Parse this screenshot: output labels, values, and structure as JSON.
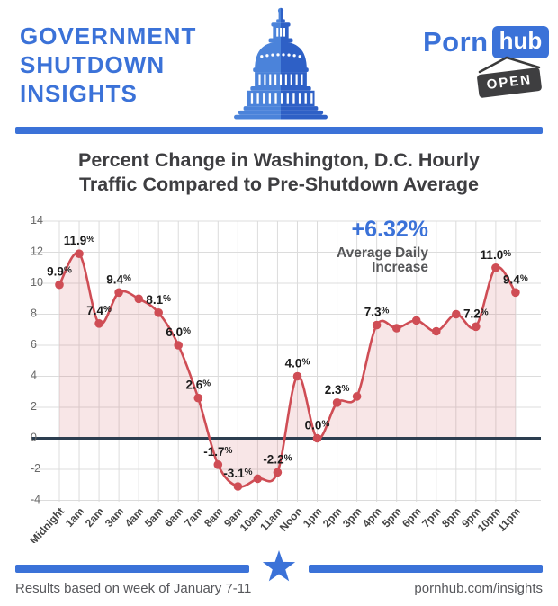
{
  "header": {
    "title_lines": [
      "GOVERNMENT",
      "SHUTDOWN",
      "INSIGHTS"
    ],
    "brand": {
      "porn": "Porn",
      "hub": "hub",
      "open_sign": "OPEN"
    },
    "accent_blue": "#3b72d8"
  },
  "chart": {
    "title_line1": "Percent Change in Washington, D.C. Hourly",
    "title_line2": "Traffic Compared to Pre-Shutdown Average"
  },
  "chart_data": {
    "type": "area",
    "title": "Percent Change in Washington, D.C. Hourly Traffic Compared to Pre-Shutdown Average",
    "x": [
      "Midnight",
      "1am",
      "2am",
      "3am",
      "4am",
      "5am",
      "6am",
      "7am",
      "8am",
      "9am",
      "10am",
      "11am",
      "Noon",
      "1pm",
      "2pm",
      "3pm",
      "4pm",
      "5pm",
      "6pm",
      "7pm",
      "8pm",
      "9pm",
      "10pm",
      "11pm"
    ],
    "series": [
      {
        "name": "Percent change vs pre-shutdown average",
        "values": [
          9.9,
          11.9,
          7.4,
          9.4,
          9.0,
          8.1,
          6.0,
          2.6,
          -1.7,
          -3.1,
          -2.6,
          -2.2,
          4.0,
          0.0,
          2.3,
          2.7,
          7.3,
          7.1,
          7.6,
          6.9,
          8.0,
          7.2,
          11.0,
          9.4
        ]
      }
    ],
    "point_labels": [
      "9.9%",
      "11.9%",
      "7.4%",
      "9.4%",
      null,
      "8.1%",
      "6.0%",
      "2.6%",
      "-1.7%",
      "-3.1%",
      null,
      "-2.2%",
      "4.0%",
      "0.0%",
      "2.3%",
      null,
      "7.3%",
      null,
      null,
      null,
      null,
      "7.2%",
      "11.0%",
      "9.4%"
    ],
    "yticks": [
      14,
      12,
      10,
      8,
      6,
      4,
      2,
      0,
      -2,
      -4
    ],
    "ylim": [
      -5.3,
      14.6
    ],
    "grid": true,
    "legend": "none",
    "annotation": {
      "headline": "+6.32%",
      "sub_lines": [
        "Average Daily",
        "Increase"
      ]
    },
    "colors": {
      "line": "#cf4d55",
      "fill": "rgba(207,77,85,0.14)",
      "zero_line": "#2c3e50",
      "grid": "#dcdcdc",
      "tick_text": "#6a6a6a",
      "x_tick_text": "#454545",
      "label_text": "#1b1b1b",
      "annotation_blue": "#3b72d8",
      "annotation_gray": "#565759"
    }
  },
  "footer": {
    "left": "Results based on week of January 7-11",
    "right": "pornhub.com/insights"
  }
}
